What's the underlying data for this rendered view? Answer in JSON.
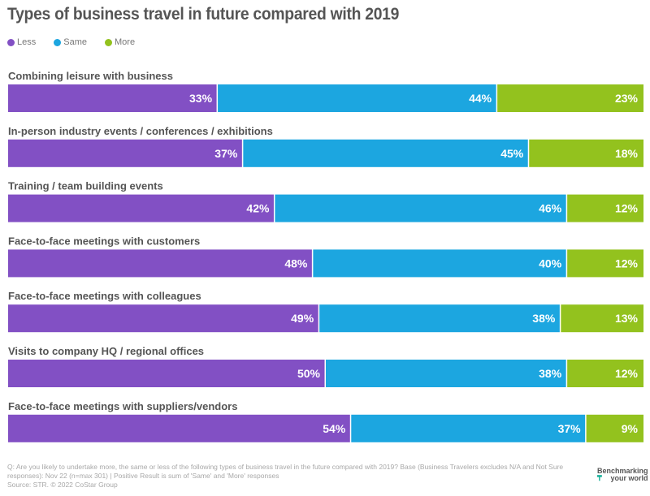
{
  "chart_data": {
    "type": "bar",
    "orientation": "horizontal",
    "stacked": true,
    "title": "Types of business travel in future compared with 2019",
    "xlabel": "",
    "ylabel": "",
    "xlim": [
      0,
      100
    ],
    "grid": false,
    "legend_position": "top-left",
    "categories": [
      "Combining leisure with business",
      "In-person industry events / conferences / exhibitions",
      "Training / team building events",
      "Face-to-face meetings with customers",
      "Face-to-face meetings with colleagues",
      "Visits to company HQ / regional offices",
      "Face-to-face meetings with suppliers/vendors"
    ],
    "series": [
      {
        "name": "Less",
        "color": "#8250c4",
        "values": [
          33,
          37,
          42,
          48,
          49,
          50,
          54
        ]
      },
      {
        "name": "Same",
        "color": "#1ca6e0",
        "values": [
          44,
          45,
          46,
          40,
          38,
          38,
          37
        ]
      },
      {
        "name": "More",
        "color": "#93c21e",
        "values": [
          23,
          18,
          12,
          12,
          13,
          12,
          9
        ]
      }
    ],
    "value_suffix": "%"
  },
  "footer": {
    "question": "Q: Are you likely to undertake more, the same or less of the following types of business travel in the future compared with 2019? Base (Business Travelers excludes N/A and Not Sure responses): Nov 22 (n=max 301) | Positive Result is sum of 'Same' and 'More' responses",
    "source": "Source: STR. © 2022 CoStar Group"
  },
  "brand": {
    "line1": "Benchmarking",
    "line2": "your world",
    "icon": "arrow-down-logo-icon",
    "icon_glyph": "₸"
  }
}
